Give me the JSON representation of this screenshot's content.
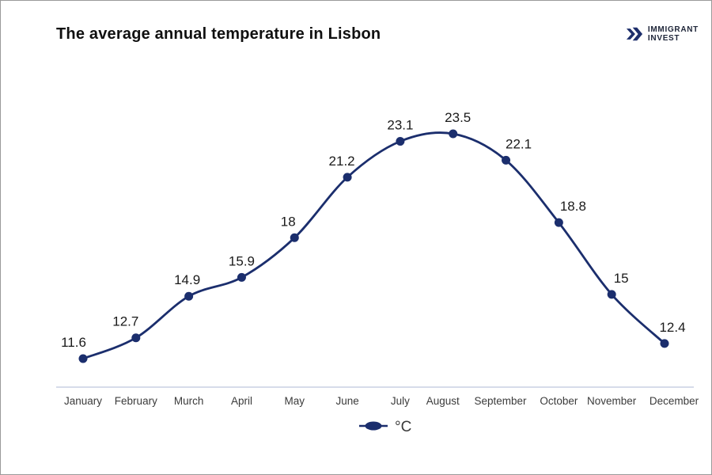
{
  "header": {
    "title": "The average annual temperature in Lisbon",
    "logo": {
      "line1": "IMMIGRANT",
      "line2": "INVEST"
    }
  },
  "chart_data": {
    "type": "line",
    "title": "The average annual temperature in Lisbon",
    "categories": [
      "January",
      "February",
      "Murch",
      "April",
      "May",
      "June",
      "July",
      "August",
      "September",
      "October",
      "November",
      "December"
    ],
    "values": [
      11.6,
      12.7,
      14.9,
      15.9,
      18,
      21.2,
      23.1,
      23.5,
      22.1,
      18.8,
      15,
      12.4
    ],
    "series_name": "°C",
    "legend_label": "°C",
    "legend_position": "bottom-center",
    "grid": false,
    "ylim": [
      11,
      24
    ],
    "colors": {
      "line": "#1b2e6d",
      "marker": "#1b2e6d",
      "axis_line": "#c9d0e3",
      "value_label": "#1a1a1a",
      "month_label": "#3b3b3b",
      "logo": "#1d2e6b"
    }
  }
}
